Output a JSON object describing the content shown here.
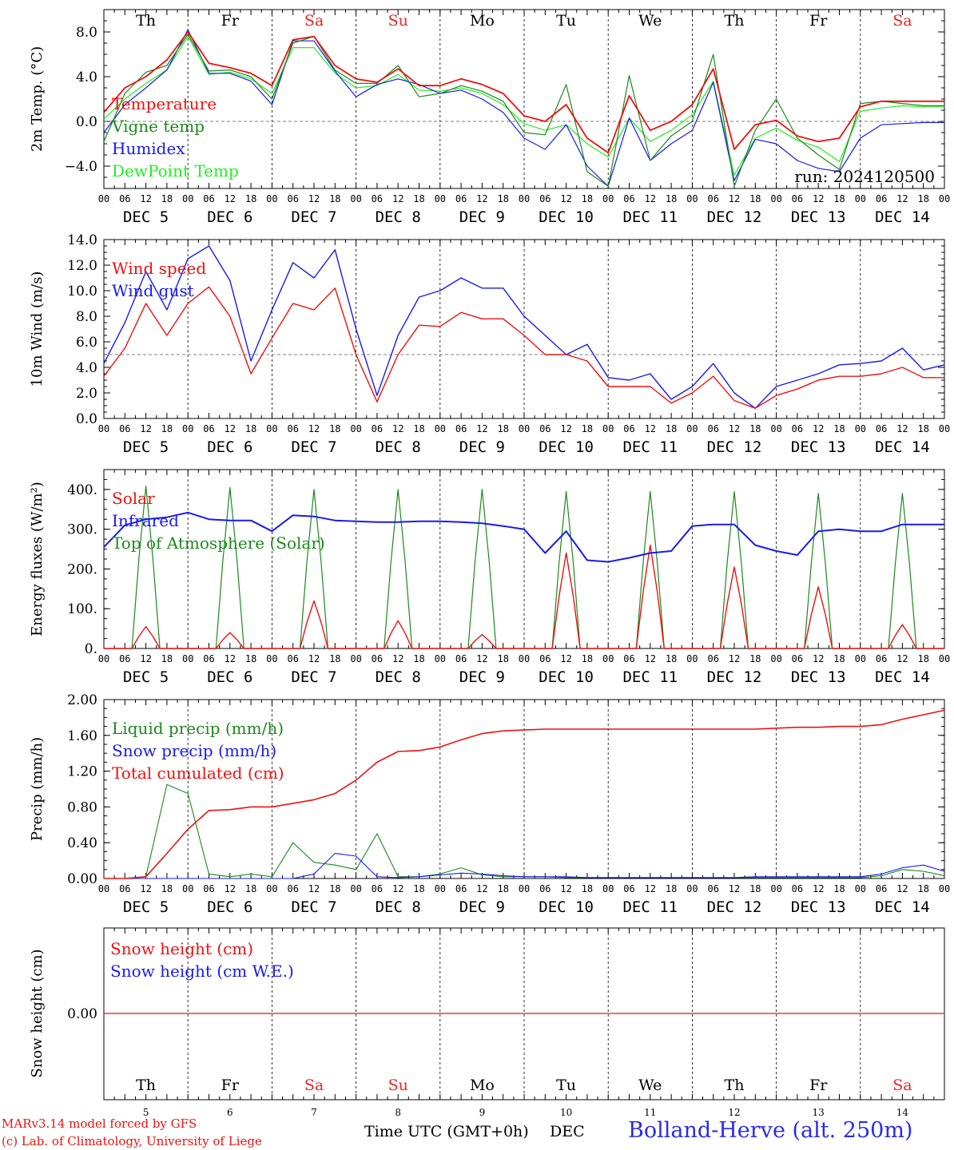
{
  "weekdays": [
    {
      "label": "Th",
      "color": "#000000"
    },
    {
      "label": "Fr",
      "color": "#000000"
    },
    {
      "label": "Sa",
      "color": "#ee2222"
    },
    {
      "label": "Su",
      "color": "#ee2222"
    },
    {
      "label": "Mo",
      "color": "#000000"
    },
    {
      "label": "Tu",
      "color": "#000000"
    },
    {
      "label": "We",
      "color": "#000000"
    },
    {
      "label": "Th",
      "color": "#000000"
    },
    {
      "label": "Fr",
      "color": "#000000"
    },
    {
      "label": "Sa",
      "color": "#ee2222"
    }
  ],
  "dates": [
    "DEC  5",
    "DEC  6",
    "DEC  7",
    "DEC  8",
    "DEC  9",
    "DEC 10",
    "DEC 11",
    "DEC 12",
    "DEC 13",
    "DEC 14"
  ],
  "day_numbers": [
    "5",
    "6",
    "7",
    "8",
    "9",
    "10",
    "11",
    "12",
    "13",
    "14"
  ],
  "hour_ticks": [
    "00",
    "06",
    "12",
    "18"
  ],
  "footer": {
    "credit_line1": "MARv3.14 model forced by GFS",
    "credit_line2": "(c) Lab. of Climatology, University of Liege",
    "xlabel": "Time UTC (GMT+0h)",
    "month": "DEC",
    "station": "Bolland-Herve (alt. 250m)"
  },
  "colors": {
    "red": "#ee1111",
    "green": "#1a8a1a",
    "blue": "#1a1aee",
    "lightgreen": "#22ee22"
  },
  "chart_data": [
    {
      "type": "line",
      "ylabel": "2m Temp. (°C)",
      "ylim": [
        -6,
        10
      ],
      "yticks": [
        -4.0,
        0.0,
        4.0,
        8.0
      ],
      "ytick_labels": [
        "−4.0",
        "0.0",
        "4.0",
        "8.0"
      ],
      "reference_line": 0,
      "annotation": "run: 2024120500",
      "x_hours_from_dec5_00": [
        0,
        6,
        12,
        18,
        24,
        30,
        36,
        42,
        48,
        54,
        60,
        66,
        72,
        78,
        84,
        90,
        96,
        102,
        108,
        114,
        120,
        126,
        132,
        138,
        144,
        150,
        156,
        162,
        168,
        174,
        180,
        186,
        192,
        198,
        204,
        210,
        216,
        222,
        228,
        234,
        240
      ],
      "series": [
        {
          "name": "Temperature",
          "color": "red",
          "values": [
            0.8,
            3.0,
            4.0,
            5.5,
            8.0,
            5.2,
            4.8,
            4.3,
            3.2,
            7.3,
            7.6,
            5.0,
            3.8,
            3.5,
            4.7,
            3.2,
            3.2,
            3.8,
            3.3,
            2.5,
            0.5,
            0.0,
            1.5,
            -1.5,
            -2.8,
            2.3,
            -0.8,
            0.0,
            1.5,
            4.7,
            -2.5,
            -0.3,
            0.1,
            -1.3,
            -1.8,
            -1.5,
            1.3,
            1.8,
            1.8,
            1.8,
            1.8
          ]
        },
        {
          "name": "Vigne temp",
          "color": "green",
          "values": [
            -1.8,
            2.5,
            4.4,
            5.0,
            7.8,
            4.5,
            4.6,
            4.0,
            2.0,
            7.0,
            7.6,
            4.6,
            3.4,
            3.4,
            5.0,
            2.2,
            2.5,
            3.2,
            2.7,
            1.8,
            -1.0,
            -1.2,
            3.3,
            -4.5,
            -5.8,
            4.1,
            -3.5,
            -1.3,
            0.0,
            6.0,
            -5.8,
            -0.8,
            2.0,
            -1.5,
            -3.0,
            -4.3,
            1.6,
            1.8,
            1.6,
            1.4,
            1.4
          ]
        },
        {
          "name": "Humidex",
          "color": "blue",
          "values": [
            -1.0,
            1.5,
            3.0,
            4.6,
            8.2,
            4.3,
            4.3,
            3.6,
            1.5,
            7.2,
            7.2,
            4.5,
            2.2,
            3.3,
            3.8,
            3.3,
            2.5,
            2.8,
            2.0,
            0.8,
            -1.5,
            -2.5,
            -0.3,
            -4.0,
            -5.8,
            0.3,
            -3.5,
            -2.0,
            -0.8,
            3.5,
            -5.3,
            -1.6,
            -2.0,
            -3.5,
            -4.2,
            -4.5,
            -1.5,
            -0.3,
            -0.2,
            -0.1,
            -0.1
          ]
        },
        {
          "name": "DewPoint Temp",
          "color": "lightgreen",
          "values": [
            0.2,
            2.0,
            3.4,
            4.6,
            7.6,
            4.2,
            4.4,
            3.8,
            2.5,
            6.6,
            6.6,
            4.3,
            3.0,
            3.2,
            4.2,
            2.8,
            2.7,
            3.0,
            2.5,
            1.5,
            -0.2,
            -0.8,
            -0.3,
            -2.0,
            -3.2,
            0.3,
            -1.8,
            -0.8,
            0.6,
            3.6,
            -4.8,
            -1.5,
            -0.6,
            -1.7,
            -2.3,
            -3.6,
            0.9,
            1.2,
            1.4,
            1.3,
            1.3
          ]
        }
      ]
    },
    {
      "type": "line",
      "ylabel": "10m Wind (m/s)",
      "ylim": [
        0,
        14
      ],
      "yticks": [
        0,
        2,
        4,
        6,
        8,
        10,
        12,
        14
      ],
      "ytick_labels": [
        "0.0",
        "2.0",
        "4.0",
        "6.0",
        "8.0",
        "10.0",
        "12.0",
        "14.0"
      ],
      "reference_line": 5,
      "x_hours_from_dec5_00": [
        0,
        6,
        12,
        18,
        24,
        30,
        36,
        42,
        48,
        54,
        60,
        66,
        72,
        78,
        84,
        90,
        96,
        102,
        108,
        114,
        120,
        126,
        132,
        138,
        144,
        150,
        156,
        162,
        168,
        174,
        180,
        186,
        192,
        198,
        204,
        210,
        216,
        222,
        228,
        234,
        240
      ],
      "series": [
        {
          "name": "Wind speed",
          "color": "red",
          "values": [
            3.3,
            5.5,
            9.0,
            6.5,
            9.0,
            10.3,
            8.0,
            3.5,
            6.3,
            9.0,
            8.5,
            10.2,
            5.0,
            1.3,
            5.0,
            7.3,
            7.2,
            8.3,
            7.8,
            7.8,
            6.5,
            5.0,
            5.0,
            4.5,
            2.5,
            2.5,
            2.5,
            1.2,
            2.0,
            3.3,
            1.4,
            0.8,
            1.8,
            2.3,
            3.0,
            3.3,
            3.3,
            3.5,
            4.0,
            3.2,
            3.2
          ]
        },
        {
          "name": "Wind gust",
          "color": "blue",
          "values": [
            4.3,
            7.5,
            11.5,
            8.5,
            12.5,
            13.5,
            10.8,
            4.5,
            8.5,
            12.2,
            11.0,
            13.2,
            7.0,
            1.8,
            6.5,
            9.5,
            10.0,
            11.0,
            10.2,
            10.2,
            8.0,
            6.5,
            5.0,
            5.8,
            3.2,
            3.0,
            3.5,
            1.5,
            2.5,
            4.3,
            2.0,
            0.8,
            2.5,
            3.0,
            3.5,
            4.2,
            4.3,
            4.5,
            5.5,
            3.8,
            4.2
          ]
        }
      ]
    },
    {
      "type": "line",
      "ylabel": "Energy fluxes (W/m²)",
      "ylim": [
        0,
        450
      ],
      "yticks": [
        0,
        100,
        200,
        300,
        400
      ],
      "ytick_labels": [
        "0.",
        "100.",
        "200.",
        "300.",
        "400."
      ],
      "solar_window_hours": [
        8,
        16
      ],
      "series": [
        {
          "name": "Solar",
          "color": "red",
          "daily_peaks": [
            55,
            40,
            120,
            70,
            35,
            240,
            260,
            205,
            155,
            60
          ]
        },
        {
          "name": "Infrared",
          "color": "blue",
          "x_hours_from_dec5_00": [
            0,
            6,
            12,
            18,
            24,
            30,
            36,
            42,
            48,
            54,
            60,
            66,
            72,
            78,
            84,
            90,
            96,
            102,
            108,
            114,
            120,
            126,
            132,
            138,
            144,
            150,
            156,
            162,
            168,
            174,
            180,
            186,
            192,
            198,
            204,
            210,
            216,
            222,
            228,
            234,
            240
          ],
          "values": [
            255,
            310,
            325,
            330,
            342,
            325,
            322,
            322,
            295,
            335,
            332,
            322,
            320,
            318,
            318,
            320,
            320,
            318,
            315,
            308,
            300,
            240,
            295,
            222,
            218,
            228,
            240,
            245,
            308,
            312,
            312,
            260,
            245,
            235,
            295,
            300,
            295,
            295,
            312,
            312,
            312
          ]
        },
        {
          "name": "Top of Atmosphere (Solar)",
          "color": "green",
          "daily_peaks": [
            408,
            405,
            400,
            400,
            400,
            395,
            395,
            395,
            390,
            390
          ]
        }
      ]
    },
    {
      "type": "line",
      "ylabel": "Precip (mm/h)",
      "ylim": [
        0,
        2.0
      ],
      "yticks": [
        0,
        0.4,
        0.8,
        1.2,
        1.6,
        2.0
      ],
      "ytick_labels": [
        "0.00",
        "0.40",
        "0.80",
        "1.20",
        "1.60",
        "2.00"
      ],
      "x_hours_from_dec5_00": [
        0,
        6,
        12,
        18,
        24,
        30,
        36,
        42,
        48,
        54,
        60,
        66,
        72,
        78,
        84,
        90,
        96,
        102,
        108,
        114,
        120,
        126,
        132,
        138,
        144,
        150,
        156,
        162,
        168,
        174,
        180,
        186,
        192,
        198,
        204,
        210,
        216,
        222,
        228,
        234,
        240
      ],
      "series": [
        {
          "name": "Liquid precip (mm/h)",
          "color": "green",
          "values": [
            0,
            0,
            0.02,
            1.05,
            0.95,
            0.05,
            0.02,
            0.05,
            0.02,
            0.4,
            0.18,
            0.15,
            0.1,
            0.5,
            0.02,
            0.02,
            0.05,
            0.12,
            0.04,
            0.02,
            0.02,
            0.02,
            0.01,
            0.01,
            0.01,
            0.01,
            0.01,
            0.01,
            0.01,
            0.01,
            0.01,
            0.01,
            0.01,
            0.01,
            0.01,
            0.01,
            0.01,
            0.03,
            0.1,
            0.08,
            0.03
          ]
        },
        {
          "name": "Snow precip (mm/h)",
          "color": "blue",
          "values": [
            0,
            0,
            0,
            0,
            0,
            0,
            0,
            0,
            0,
            0,
            0.05,
            0.28,
            0.25,
            0.02,
            0.01,
            0.02,
            0.04,
            0.06,
            0.05,
            0.03,
            0.02,
            0.02,
            0.02,
            0.01,
            0.01,
            0.01,
            0.01,
            0.01,
            0.01,
            0.01,
            0.01,
            0.02,
            0.02,
            0.02,
            0.02,
            0.02,
            0.02,
            0.05,
            0.12,
            0.15,
            0.08
          ]
        },
        {
          "name": "Total cumulated (cm)",
          "color": "red",
          "values": [
            0,
            0,
            0.02,
            0.28,
            0.55,
            0.76,
            0.77,
            0.8,
            0.8,
            0.84,
            0.88,
            0.95,
            1.1,
            1.3,
            1.42,
            1.43,
            1.47,
            1.55,
            1.62,
            1.65,
            1.66,
            1.67,
            1.67,
            1.67,
            1.67,
            1.67,
            1.67,
            1.67,
            1.67,
            1.67,
            1.67,
            1.67,
            1.68,
            1.69,
            1.69,
            1.7,
            1.7,
            1.72,
            1.78,
            1.83,
            1.88
          ]
        }
      ]
    },
    {
      "type": "line",
      "ylabel": "Snow height (cm)",
      "yticks": [
        0
      ],
      "ytick_labels": [
        "0.00"
      ],
      "series": [
        {
          "name": "Snow height (cm)",
          "color": "red",
          "values": [
            0,
            0
          ]
        },
        {
          "name": "Snow height (cm W.E.)",
          "color": "blue",
          "values": [
            0,
            0
          ]
        }
      ]
    }
  ]
}
